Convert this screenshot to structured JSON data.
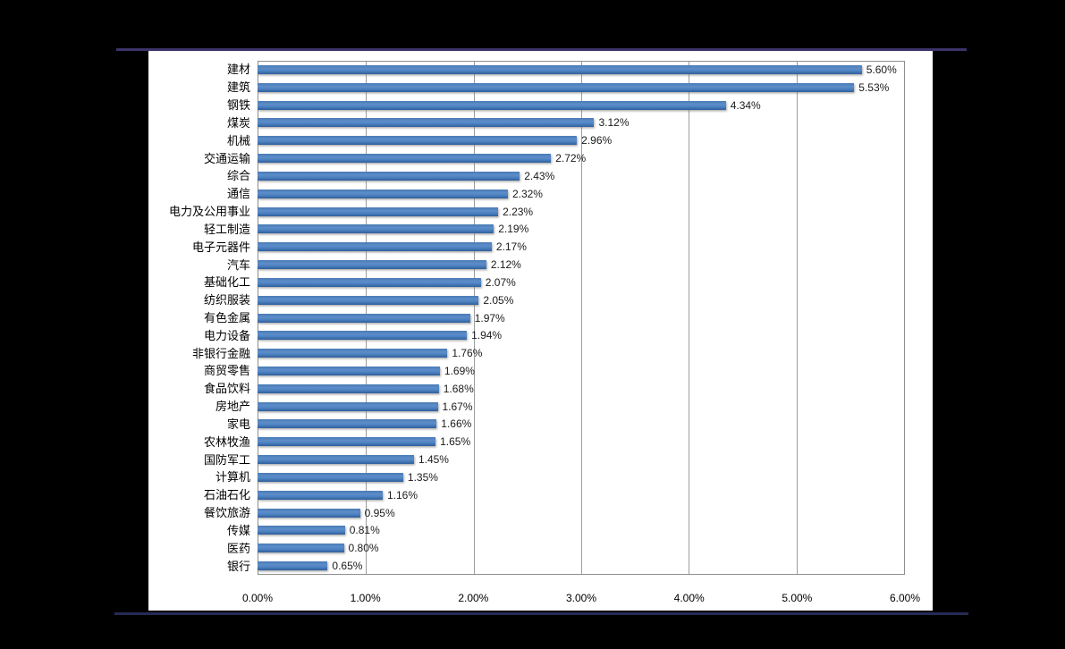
{
  "page": {
    "background_color": "#000000",
    "panel_background_color": "#ffffff",
    "top_accent_color": "#3c356a",
    "bottom_accent_color": "#252b55"
  },
  "chart_data": {
    "type": "bar",
    "orientation": "horizontal",
    "title": "",
    "xlabel": "",
    "ylabel": "",
    "legend_position": "none",
    "grid": "vertical",
    "xlim": [
      0,
      6
    ],
    "x_tick_step": 1,
    "x_ticks": [
      "0.00%",
      "1.00%",
      "2.00%",
      "3.00%",
      "4.00%",
      "5.00%",
      "6.00%"
    ],
    "categories": [
      "建材",
      "建筑",
      "钢铁",
      "煤炭",
      "机械",
      "交通运输",
      "综合",
      "通信",
      "电力及公用事业",
      "轻工制造",
      "电子元器件",
      "汽车",
      "基础化工",
      "纺织服装",
      "有色金属",
      "电力设备",
      "非银行金融",
      "商贸零售",
      "食品饮料",
      "房地产",
      "家电",
      "农林牧渔",
      "国防军工",
      "计算机",
      "石油石化",
      "餐饮旅游",
      "传媒",
      "医药",
      "银行"
    ],
    "values": [
      5.6,
      5.53,
      4.34,
      3.12,
      2.96,
      2.72,
      2.43,
      2.32,
      2.23,
      2.19,
      2.17,
      2.12,
      2.07,
      2.05,
      1.97,
      1.94,
      1.76,
      1.69,
      1.68,
      1.67,
      1.66,
      1.65,
      1.45,
      1.35,
      1.16,
      0.95,
      0.81,
      0.8,
      0.65
    ],
    "value_labels": [
      "5.60%",
      "5.53%",
      "4.34%",
      "3.12%",
      "2.96%",
      "2.72%",
      "2.43%",
      "2.32%",
      "2.23%",
      "2.19%",
      "2.17%",
      "2.12%",
      "2.07%",
      "2.05%",
      "1.97%",
      "1.94%",
      "1.76%",
      "1.69%",
      "1.68%",
      "1.67%",
      "1.66%",
      "1.65%",
      "1.45%",
      "1.35%",
      "1.16%",
      "0.95%",
      "0.81%",
      "0.80%",
      "0.65%"
    ],
    "bar_color": "#4f81bd",
    "bar_gradient": [
      "#4a7ab5",
      "#5c8dc9",
      "#4f83c1",
      "#305f9d"
    ],
    "gridline_color": "#9d9d9d",
    "plot_border_color": "#8e8e8e",
    "value_label_color": "#1a1a1a",
    "category_label_color": "#000000"
  }
}
